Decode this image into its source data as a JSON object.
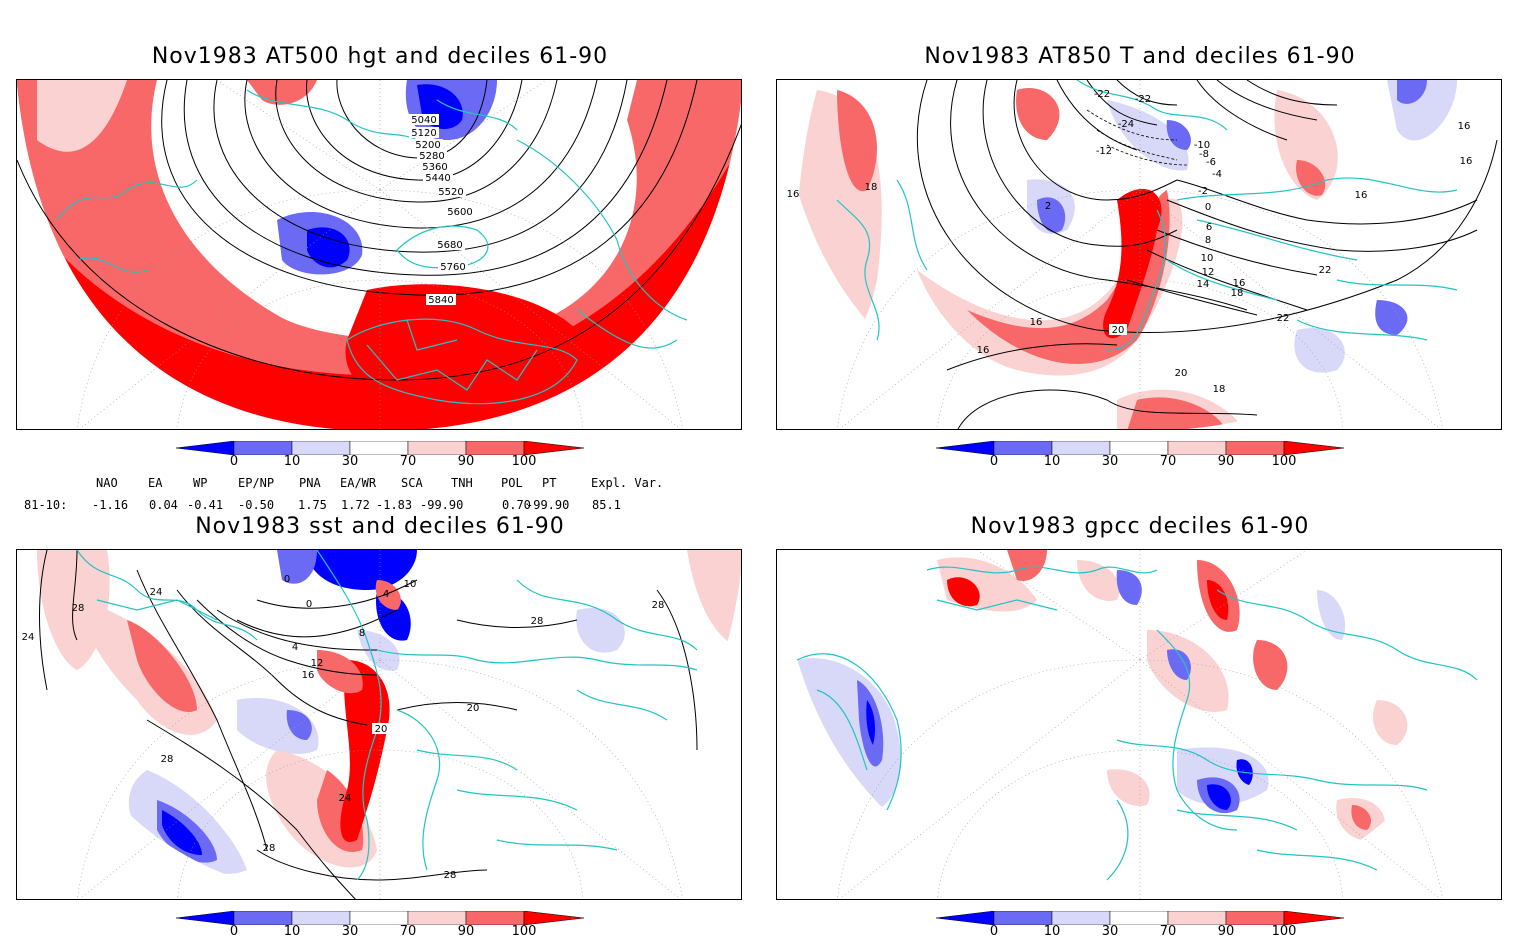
{
  "panels": [
    {
      "id": "p1",
      "title": "Nov1983 AT500 hgt and deciles 61-90",
      "contour_labels": [
        "5040",
        "5120",
        "5200",
        "5280",
        "5360",
        "5440",
        "5520",
        "5600",
        "5680",
        "5760",
        "5840"
      ]
    },
    {
      "id": "p2",
      "title": "Nov1983 AT850 T and deciles 61-90",
      "contour_labels": [
        "-22",
        "-22",
        "-24",
        "-12",
        "-10",
        "-8",
        "-6",
        "-4",
        "-2",
        "0",
        "2",
        "6",
        "8",
        "10",
        "12",
        "14",
        "16",
        "16",
        "16",
        "16",
        "16",
        "16",
        "16",
        "18",
        "18",
        "18",
        "20",
        "20",
        "22",
        "22"
      ]
    },
    {
      "id": "p3",
      "title": "Nov1983 sst and deciles 61-90",
      "contour_labels": [
        "24",
        "24",
        "28",
        "28",
        "28",
        "28",
        "0",
        "0",
        "4",
        "4",
        "8",
        "10",
        "12",
        "16",
        "20",
        "20",
        "24",
        "28",
        "28"
      ]
    },
    {
      "id": "p4",
      "title": "Nov1983 gpcc deciles 61-90",
      "contour_labels": []
    }
  ],
  "colorbar": {
    "ticks": [
      "0",
      "10",
      "30",
      "70",
      "90",
      "100"
    ],
    "colors": [
      "#0000ff",
      "#6a6af5",
      "#d8d8f8",
      "#ffffff",
      "#fbd2d2",
      "#f86868",
      "#ff0000"
    ]
  },
  "teleconnections": {
    "headers": [
      "NAO",
      "EA",
      "WP",
      "EP/NP",
      "PNA",
      "EA/WR",
      "SCA",
      "TNH",
      "POL",
      "PT",
      "Expl. Var."
    ],
    "row_label": "81-10:",
    "values": [
      "-1.16",
      "0.04",
      "-0.41",
      "-0.50",
      "1.75",
      "1.72",
      "-1.83",
      "-99.90",
      "0.70",
      "-99.90",
      "85.1"
    ]
  }
}
